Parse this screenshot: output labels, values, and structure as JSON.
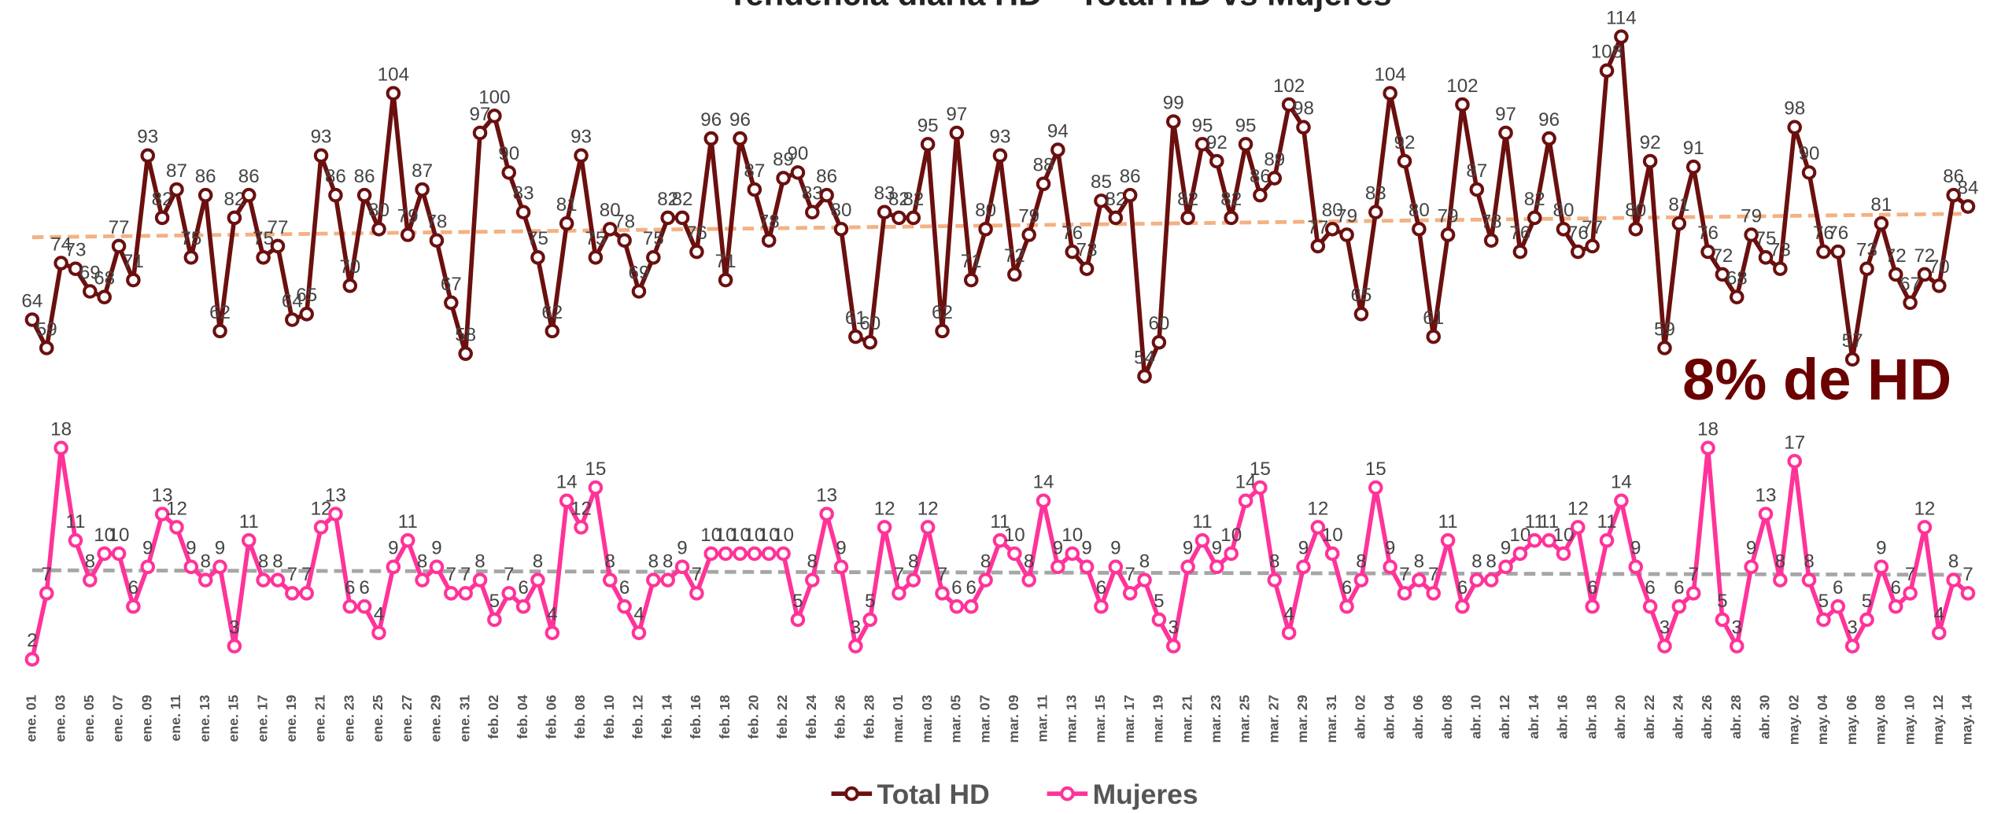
{
  "chart_data": {
    "type": "line",
    "title": "Tendencia diaria HD – Total HD vs Mujeres",
    "annotation": "8% de HD",
    "categories": [
      "ene. 01",
      null,
      "ene. 03",
      null,
      "ene. 05",
      null,
      "ene. 07",
      null,
      "ene. 09",
      null,
      "ene. 11",
      null,
      "ene. 13",
      null,
      "ene. 15",
      null,
      "ene. 17",
      null,
      "ene. 19",
      null,
      "ene. 21",
      null,
      "ene. 23",
      null,
      "ene. 25",
      null,
      "ene. 27",
      null,
      "ene. 29",
      null,
      "ene. 31",
      null,
      "feb. 02",
      null,
      "feb. 04",
      null,
      "feb. 06",
      null,
      "feb. 08",
      null,
      "feb. 10",
      null,
      "feb. 12",
      null,
      "feb. 14",
      null,
      "feb. 16",
      null,
      "feb. 18",
      null,
      "feb. 20",
      null,
      "feb. 22",
      null,
      "feb. 24",
      null,
      "feb. 26",
      null,
      "feb. 28",
      null,
      "mar. 01",
      null,
      "mar. 03",
      null,
      "mar. 05",
      null,
      "mar. 07",
      null,
      "mar. 09",
      null,
      "mar. 11",
      null,
      "mar. 13",
      null,
      "mar. 15",
      null,
      "mar. 17",
      null,
      "mar. 19",
      null,
      "mar. 21",
      null,
      "mar. 23",
      null,
      "mar. 25",
      null,
      "mar. 27",
      null,
      "mar. 29",
      null,
      "mar. 31",
      null,
      "abr. 02",
      null,
      "abr. 04",
      null,
      "abr. 06",
      null,
      "abr. 08",
      null,
      "abr. 10",
      null,
      "abr. 12",
      null,
      "abr. 14",
      null,
      "abr. 16",
      null,
      "abr. 18",
      null,
      "abr. 20",
      null,
      "abr. 22",
      null,
      "abr. 24",
      null,
      "abr. 26",
      null,
      "abr. 28",
      null,
      "abr. 30",
      null,
      "may. 02",
      null,
      "may. 04",
      null,
      "may. 06",
      null,
      "may. 08",
      null,
      "may. 10",
      null,
      "may. 12",
      null,
      "may. 14"
    ],
    "series": [
      {
        "name": "Total HD",
        "color": "#6b0f0f",
        "trend_color": "#f4b183",
        "values": [
          64,
          59,
          74,
          73,
          69,
          68,
          77,
          71,
          93,
          82,
          87,
          75,
          86,
          62,
          82,
          86,
          75,
          77,
          64,
          65,
          93,
          86,
          70,
          86,
          80,
          104,
          79,
          87,
          78,
          67,
          58,
          97,
          100,
          90,
          83,
          75,
          62,
          81,
          93,
          75,
          80,
          78,
          69,
          75,
          82,
          82,
          76,
          96,
          71,
          96,
          87,
          78,
          89,
          90,
          83,
          86,
          80,
          61,
          60,
          83,
          82,
          82,
          95,
          62,
          97,
          71,
          80,
          93,
          72,
          79,
          88,
          94,
          76,
          73,
          85,
          82,
          86,
          54,
          60,
          99,
          82,
          95,
          92,
          82,
          95,
          86,
          89,
          102,
          98,
          77,
          80,
          79,
          65,
          83,
          104,
          92,
          80,
          61,
          79,
          102,
          87,
          78,
          97,
          76,
          82,
          96,
          80,
          76,
          77,
          108,
          114,
          80,
          92,
          59,
          81,
          91,
          76,
          72,
          68,
          79,
          75,
          73,
          98,
          90,
          76,
          76,
          57,
          73,
          81,
          72,
          67,
          72,
          70,
          86,
          84
        ]
      },
      {
        "name": "Mujeres",
        "color": "#ff3399",
        "trend_color": "#a6a6a6",
        "axis": "y2",
        "values": [
          2,
          7,
          18,
          11,
          8,
          10,
          10,
          6,
          9,
          13,
          12,
          9,
          8,
          9,
          3,
          11,
          8,
          8,
          7,
          7,
          12,
          13,
          6,
          6,
          4,
          9,
          11,
          8,
          9,
          7,
          7,
          8,
          5,
          7,
          6,
          8,
          4,
          14,
          12,
          15,
          8,
          6,
          4,
          8,
          8,
          9,
          7,
          10,
          10,
          10,
          10,
          10,
          10,
          5,
          8,
          13,
          9,
          3,
          5,
          12,
          7,
          8,
          12,
          7,
          6,
          6,
          8,
          11,
          10,
          8,
          14,
          9,
          10,
          9,
          6,
          9,
          7,
          8,
          5,
          3,
          9,
          11,
          9,
          10,
          14,
          15,
          8,
          4,
          9,
          12,
          10,
          6,
          8,
          15,
          9,
          7,
          8,
          7,
          11,
          6,
          8,
          8,
          9,
          10,
          11,
          11,
          10,
          12,
          6,
          11,
          14,
          9,
          6,
          3,
          6,
          7,
          18,
          5,
          3,
          9,
          13,
          8,
          17,
          8,
          5,
          6,
          3,
          5,
          9,
          6,
          7,
          12,
          4,
          8,
          7
        ]
      }
    ],
    "ylim": [
      4,
      116
    ],
    "y2lim": [
      2,
      50
    ],
    "trendline": true,
    "grid": false,
    "legend": "bottom"
  }
}
